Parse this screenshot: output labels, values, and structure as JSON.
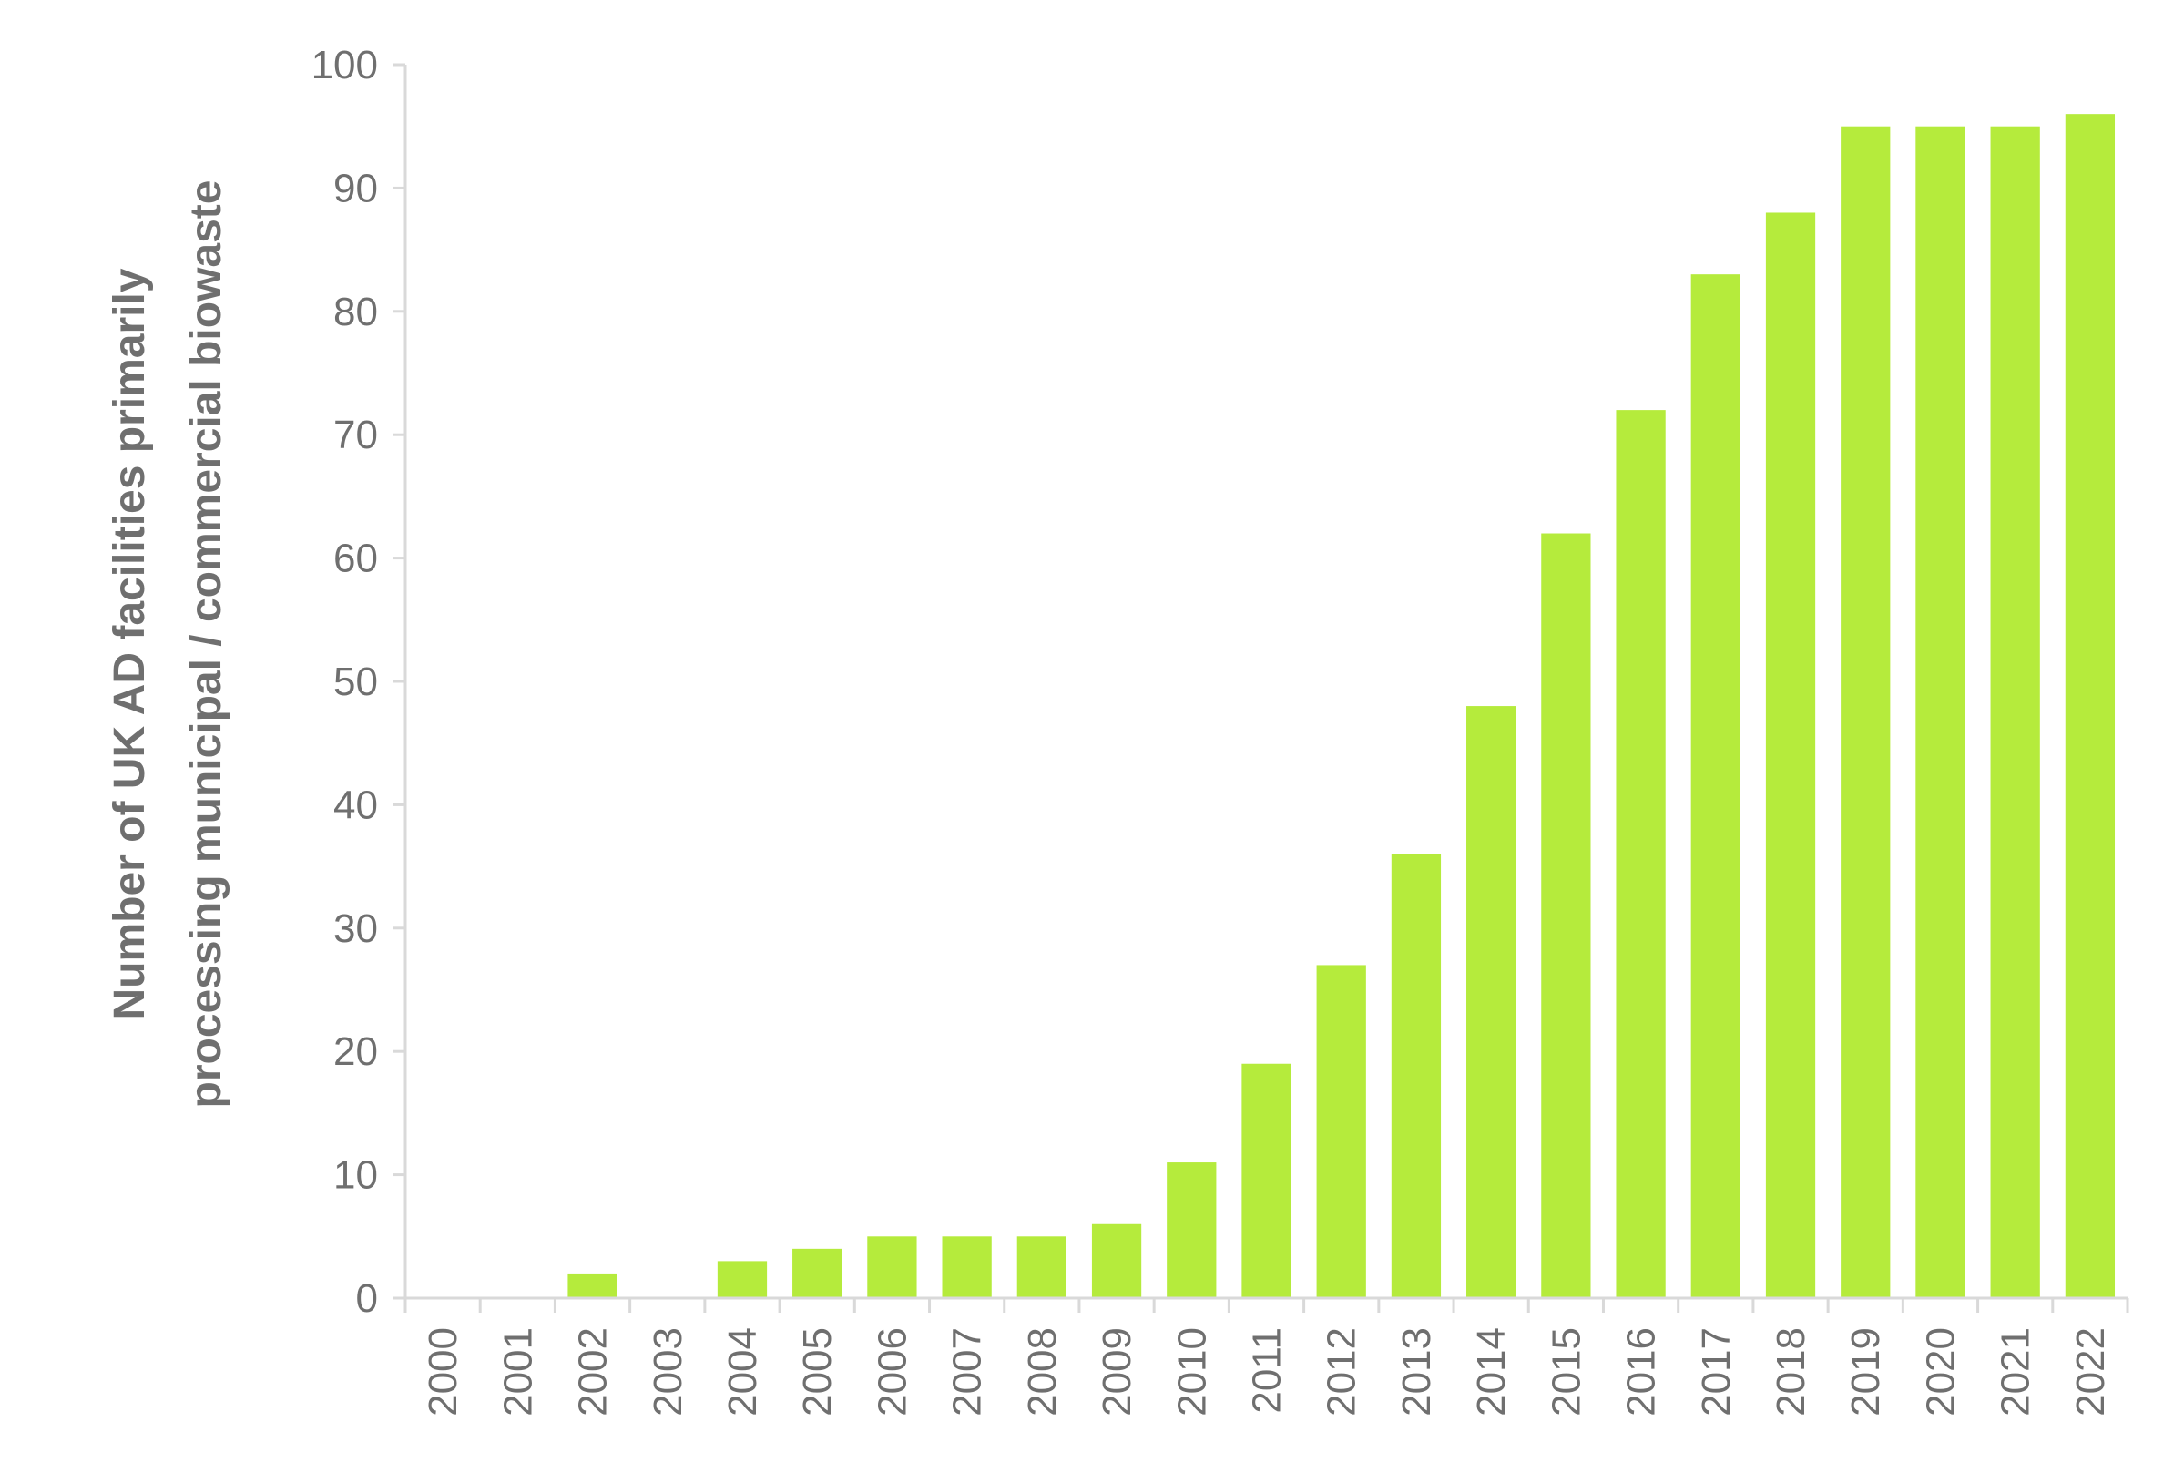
{
  "chart_data": {
    "type": "bar",
    "categories": [
      "2000",
      "2001",
      "2002",
      "2003",
      "2004",
      "2005",
      "2006",
      "2007",
      "2008",
      "2009",
      "2010",
      "2011",
      "2012",
      "2013",
      "2014",
      "2015",
      "2016",
      "2017",
      "2018",
      "2019",
      "2020",
      "2021",
      "2022"
    ],
    "values": [
      0,
      0,
      2,
      0,
      3,
      4,
      5,
      5,
      5,
      6,
      11,
      19,
      27,
      36,
      48,
      62,
      72,
      83,
      88,
      95,
      95,
      95,
      96
    ],
    "title": "",
    "xlabel": "",
    "ylabel": [
      "Number of UK AD facilities primarily",
      "processing municipal / commercial biowaste"
    ],
    "ylim": [
      0,
      100
    ],
    "yticks": [
      "0",
      "10",
      "20",
      "30",
      "40",
      "50",
      "60",
      "70",
      "80",
      "90",
      "100"
    ],
    "grid": false,
    "bar_color": "#b5eb3c",
    "axis_color": "#d9d9d9",
    "text_color": "#6f6f6f"
  }
}
